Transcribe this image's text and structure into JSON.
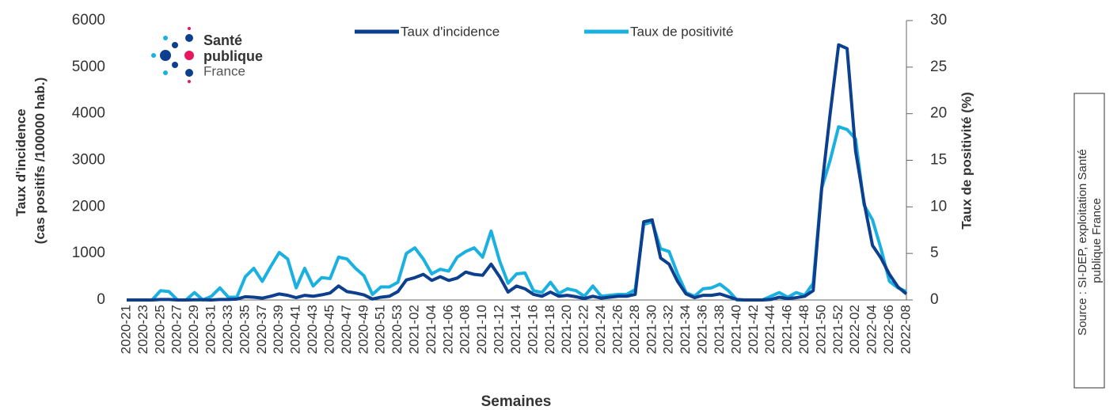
{
  "chart_data": {
    "type": "line",
    "logo": [
      "Santé",
      "publique",
      "France"
    ],
    "source": [
      "Source : SI-DEP, exploitation Santé",
      "publique France"
    ],
    "x_label": "Semaines",
    "y_label": [
      "Taux d'incidence",
      "(cas positifs /100000 hab.)"
    ],
    "y2_label": "Taux de positivité (%)",
    "categories": [
      "2020-21",
      null,
      "2020-23",
      null,
      "2020-25",
      null,
      "2020-27",
      null,
      "2020-29",
      null,
      "2020-31",
      null,
      "2020-33",
      null,
      "2020-35",
      null,
      "2020-37",
      null,
      "2020-39",
      null,
      "2020-41",
      null,
      "2020-43",
      null,
      "2020-45",
      null,
      "2020-47",
      null,
      "2020-49",
      null,
      "2020-51",
      null,
      "2020-53",
      null,
      "2021-02",
      null,
      "2021-04",
      null,
      "2021-06",
      null,
      "2021-08",
      null,
      "2021-10",
      null,
      "2021-12",
      null,
      "2021-14",
      null,
      "2021-16",
      null,
      "2021-18",
      null,
      "2021-20",
      null,
      "2021-22",
      null,
      "2021-24",
      null,
      "2021-26",
      null,
      "2021-28",
      null,
      "2021-30",
      null,
      "2021-32",
      null,
      "2021-34",
      null,
      "2021-36",
      null,
      "2021-38",
      null,
      "2021-40",
      null,
      "2021-42",
      null,
      "2021-44",
      null,
      "2021-46",
      null,
      "2021-48",
      null,
      "2021-50",
      null,
      "2021-52",
      null,
      "2022-02",
      null,
      "2022-04",
      null,
      "2022-06",
      null,
      "2022-08"
    ],
    "series": [
      {
        "name": "Taux d'incidence",
        "color": "#0d3f8f",
        "axis": "y",
        "values": [
          0,
          0,
          0,
          0,
          10,
          10,
          0,
          0,
          5,
          5,
          0,
          10,
          10,
          20,
          70,
          60,
          40,
          80,
          130,
          100,
          50,
          100,
          80,
          110,
          150,
          300,
          180,
          150,
          110,
          20,
          60,
          80,
          180,
          430,
          480,
          550,
          420,
          500,
          420,
          470,
          600,
          550,
          530,
          770,
          500,
          170,
          300,
          240,
          120,
          80,
          170,
          80,
          100,
          70,
          30,
          80,
          40,
          60,
          80,
          80,
          120,
          1680,
          1720,
          900,
          770,
          400,
          130,
          50,
          100,
          100,
          130,
          70,
          10,
          0,
          0,
          0,
          10,
          60,
          30,
          50,
          80,
          200,
          2400,
          4000,
          5480,
          5400,
          3200,
          2100,
          1170,
          900,
          550,
          280,
          130
        ]
      },
      {
        "name": "Taux de positivité",
        "color": "#1ab0e0",
        "axis": "y2",
        "values": [
          0,
          0,
          0,
          0,
          1,
          0.9,
          0,
          0,
          0.8,
          0,
          0.4,
          1.3,
          0.3,
          0.3,
          2.5,
          3.4,
          2,
          3.6,
          5.1,
          4.4,
          1.3,
          3.4,
          1.5,
          2.4,
          2.3,
          4.6,
          4.4,
          3.4,
          2.6,
          0.6,
          1.4,
          1.4,
          1.9,
          5,
          5.6,
          4.4,
          2.8,
          3.3,
          3.1,
          4.6,
          5.2,
          5.6,
          4.6,
          7.4,
          4.2,
          1.8,
          2.8,
          2.9,
          1,
          0.8,
          1.9,
          0.7,
          1.2,
          1,
          0.4,
          1.5,
          0.4,
          0.5,
          0.6,
          0.6,
          1.1,
          8.1,
          8.4,
          5.5,
          5.2,
          2.8,
          0.8,
          0.4,
          1.2,
          1.3,
          1.7,
          1,
          0,
          0,
          0,
          0,
          0.4,
          0.8,
          0.3,
          0.8,
          0.5,
          1.8,
          12,
          15,
          18.6,
          18.3,
          17.3,
          10.2,
          8.6,
          5.5,
          2,
          1.3,
          0.9
        ]
      }
    ],
    "ylim": [
      0,
      6000
    ],
    "yticks": [
      0,
      1000,
      2000,
      3000,
      4000,
      5000,
      6000
    ],
    "y2lim": [
      0,
      30
    ],
    "y2ticks": [
      0,
      5,
      10,
      15,
      20,
      25,
      30
    ]
  }
}
